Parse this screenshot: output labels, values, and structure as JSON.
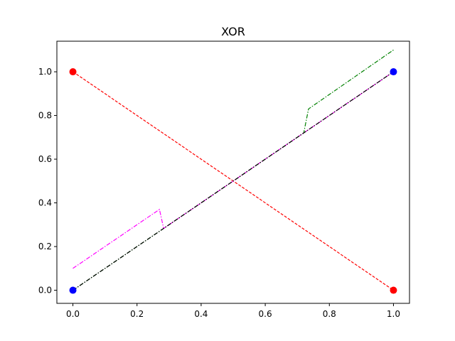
{
  "chart_data": {
    "type": "line",
    "title": "XOR",
    "xlabel": "",
    "ylabel": "",
    "xlim": [
      -0.05,
      1.05
    ],
    "ylim": [
      -0.06,
      1.14
    ],
    "xticks": [
      0.0,
      0.2,
      0.4,
      0.6,
      0.8,
      1.0
    ],
    "xtick_labels": [
      "0.0",
      "0.2",
      "0.4",
      "0.6",
      "0.8",
      "1.0"
    ],
    "yticks": [
      0.0,
      0.2,
      0.4,
      0.6,
      0.8,
      1.0
    ],
    "ytick_labels": [
      "0.0",
      "0.2",
      "0.4",
      "0.6",
      "0.8",
      "1.0"
    ],
    "grid": false,
    "series": [
      {
        "style": "dashed",
        "color": "#ff0000",
        "x": [
          0.0,
          1.0
        ],
        "y": [
          1.0,
          0.0
        ]
      },
      {
        "style": "dashdot",
        "color": "#008000",
        "x": [
          0.0,
          0.72,
          0.735,
          1.0
        ],
        "y": [
          0.0,
          0.72,
          0.83,
          1.1
        ]
      },
      {
        "style": "dashdot",
        "color": "#ff00ff",
        "x": [
          0.0,
          0.27,
          0.283,
          1.0
        ],
        "y": [
          0.1,
          0.37,
          0.283,
          1.0
        ]
      },
      {
        "style": "dashdot",
        "color": "#000000",
        "x": [
          0.0,
          1.0
        ],
        "y": [
          0.0,
          1.0
        ]
      }
    ],
    "points": [
      {
        "x": 0.0,
        "y": 0.0,
        "color": "#0000ff"
      },
      {
        "x": 1.0,
        "y": 1.0,
        "color": "#0000ff"
      },
      {
        "x": 0.0,
        "y": 1.0,
        "color": "#ff0000"
      },
      {
        "x": 1.0,
        "y": 0.0,
        "color": "#ff0000"
      }
    ]
  }
}
